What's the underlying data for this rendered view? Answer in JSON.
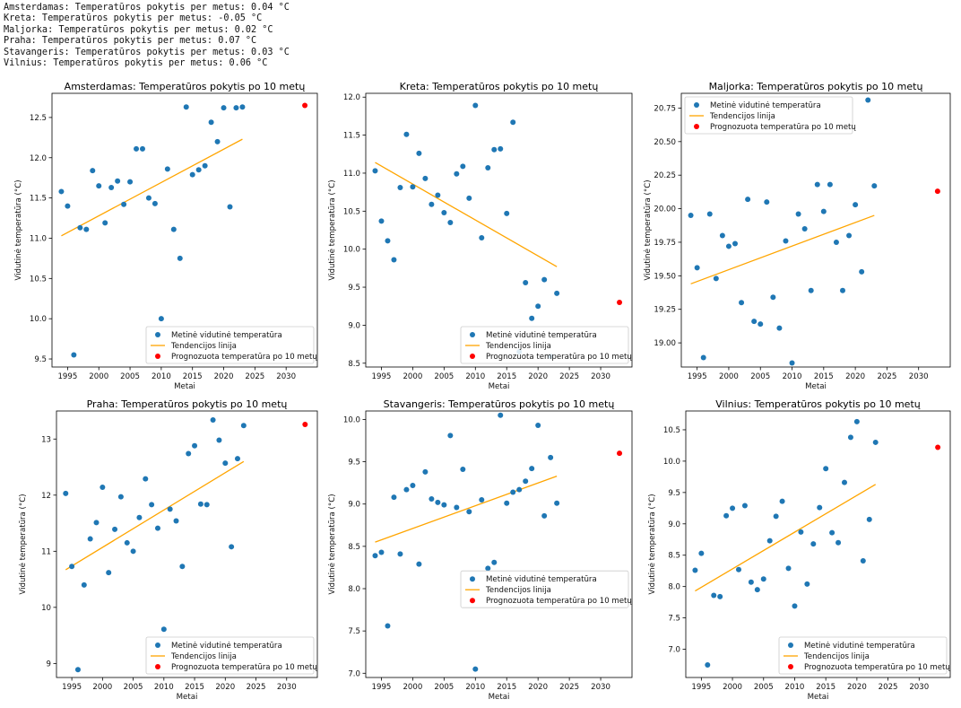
{
  "console": [
    "Amsterdamas: Temperatūros pokytis per metus: 0.04 °C",
    "Kreta: Temperatūros pokytis per metus: -0.05 °C",
    "Maljorka: Temperatūros pokytis per metus: 0.02 °C",
    "Praha: Temperatūros pokytis per metus: 0.07 °C",
    "Stavangeris: Temperatūros pokytis per metus: 0.03 °C",
    "Vilnius: Temperatūros pokytis per metus: 0.06 °C"
  ],
  "colors": {
    "points": "#1f77b4",
    "trend": "#ffa500",
    "forecast": "#ff0000"
  },
  "chart_data": [
    {
      "type": "scatter",
      "title": "Amsterdamas: Temperatūros pokytis po 10 metų",
      "xlabel": "Metai",
      "ylabel": "Vidutinė temperatūra (°C)",
      "xlim": [
        1992.5,
        2035
      ],
      "ylim": [
        9.4,
        12.8
      ],
      "xticks": [
        "1995",
        "2000",
        "2005",
        "2010",
        "2015",
        "2020",
        "2025",
        "2030"
      ],
      "yticks": [
        "9.5",
        "10.0",
        "10.5",
        "11.0",
        "11.5",
        "12.0",
        "12.5"
      ],
      "legend_position": "lower-right",
      "legend": [
        "Metinė vidutinė temperatūra",
        "Tendencijos linija",
        "Prognozuota temperatūra po 10 metų"
      ],
      "series": [
        {
          "name": "Metinė vidutinė temperatūra",
          "x": [
            1994,
            1995,
            1996,
            1997,
            1998,
            1999,
            2000,
            2001,
            2002,
            2003,
            2004,
            2005,
            2006,
            2007,
            2008,
            2009,
            2010,
            2011,
            2012,
            2013,
            2014,
            2015,
            2016,
            2017,
            2018,
            2019,
            2020,
            2021,
            2022,
            2023
          ],
          "y": [
            11.58,
            11.4,
            9.55,
            11.13,
            11.11,
            11.84,
            11.65,
            11.19,
            11.63,
            11.71,
            11.42,
            11.7,
            12.11,
            12.11,
            11.5,
            11.43,
            10.0,
            11.86,
            11.11,
            10.75,
            12.63,
            11.79,
            11.85,
            11.9,
            12.44,
            12.2,
            12.62,
            11.39,
            12.62,
            12.63
          ]
        },
        {
          "name": "Tendencijos linija",
          "x": [
            1994,
            2023
          ],
          "y": [
            11.03,
            12.23
          ]
        },
        {
          "name": "Prognozuota temperatūra po 10 metų",
          "x": [
            2033
          ],
          "y": [
            12.65
          ]
        }
      ]
    },
    {
      "type": "scatter",
      "title": "Kreta: Temperatūros pokytis po 10 metų",
      "xlabel": "Metai",
      "ylabel": "Vidutinė temperatūra (°C)",
      "xlim": [
        1992.5,
        2035
      ],
      "ylim": [
        8.45,
        12.05
      ],
      "xticks": [
        "1995",
        "2000",
        "2005",
        "2010",
        "2015",
        "2020",
        "2025",
        "2030"
      ],
      "yticks": [
        "8.5",
        "9.0",
        "9.5",
        "10.0",
        "10.5",
        "11.0",
        "11.5",
        "12.0"
      ],
      "legend_position": "lower-right",
      "legend": [
        "Metinė vidutinė temperatūra",
        "Tendencijos linija",
        "Prognozuota temperatūra po 10 metų"
      ],
      "series": [
        {
          "name": "Metinė vidutinė temperatūra",
          "x": [
            1994,
            1995,
            1996,
            1997,
            1998,
            1999,
            2000,
            2001,
            2002,
            2003,
            2004,
            2005,
            2006,
            2007,
            2008,
            2009,
            2010,
            2011,
            2012,
            2013,
            2014,
            2015,
            2016,
            2017,
            2018,
            2019,
            2020,
            2021,
            2022,
            2023
          ],
          "y": [
            11.03,
            10.37,
            10.11,
            9.86,
            10.81,
            11.51,
            10.82,
            11.26,
            10.93,
            10.59,
            10.71,
            10.48,
            10.35,
            10.99,
            11.09,
            10.67,
            11.89,
            10.15,
            11.07,
            11.31,
            11.32,
            10.47,
            11.67,
            8.65,
            9.56,
            9.09,
            9.25,
            9.6,
            8.59,
            9.42
          ]
        },
        {
          "name": "Tendencijos linija",
          "x": [
            1994,
            2023
          ],
          "y": [
            11.14,
            9.77
          ]
        },
        {
          "name": "Prognozuota temperatūra po 10 metų",
          "x": [
            2033
          ],
          "y": [
            9.3
          ]
        }
      ]
    },
    {
      "type": "scatter",
      "title": "Maljorka: Temperatūros pokytis po 10 metų",
      "xlabel": "Metai",
      "ylabel": "Vidutinė temperatūra (°C)",
      "xlim": [
        1992.5,
        2035
      ],
      "ylim": [
        18.82,
        20.86
      ],
      "xticks": [
        "1995",
        "2000",
        "2005",
        "2010",
        "2015",
        "2020",
        "2025",
        "2030"
      ],
      "yticks": [
        "19.00",
        "19.25",
        "19.50",
        "19.75",
        "20.00",
        "20.25",
        "20.50",
        "20.75"
      ],
      "legend_position": "upper-left",
      "legend": [
        "Metinė vidutinė temperatūra",
        "Tendencijos linija",
        "Prognozuota temperatūra po 10 metų"
      ],
      "series": [
        {
          "name": "Metinė vidutinė temperatūra",
          "x": [
            1994,
            1995,
            1996,
            1997,
            1998,
            1999,
            2000,
            2001,
            2002,
            2003,
            2004,
            2005,
            2006,
            2007,
            2008,
            2009,
            2010,
            2011,
            2012,
            2013,
            2014,
            2015,
            2016,
            2017,
            2018,
            2019,
            2020,
            2021,
            2022,
            2023
          ],
          "y": [
            19.95,
            19.56,
            18.89,
            19.96,
            19.48,
            19.8,
            19.72,
            19.74,
            19.3,
            20.07,
            19.16,
            19.14,
            20.05,
            19.34,
            19.11,
            19.76,
            18.85,
            19.96,
            19.85,
            19.39,
            20.18,
            19.98,
            20.18,
            19.75,
            19.39,
            19.8,
            20.03,
            19.53,
            20.81,
            20.17
          ]
        },
        {
          "name": "Tendencijos linija",
          "x": [
            1994,
            2023
          ],
          "y": [
            19.44,
            19.95
          ]
        },
        {
          "name": "Prognozuota temperatūra po 10 metų",
          "x": [
            2033
          ],
          "y": [
            20.13
          ]
        }
      ]
    },
    {
      "type": "scatter",
      "title": "Praha: Temperatūros pokytis po 10 metų",
      "xlabel": "Metai",
      "ylabel": "Vidutinė temperatūra (°C)",
      "xlim": [
        1992.5,
        2035
      ],
      "ylim": [
        8.75,
        13.5
      ],
      "xticks": [
        "1995",
        "2000",
        "2005",
        "2010",
        "2015",
        "2020",
        "2025",
        "2030"
      ],
      "yticks": [
        "9",
        "10",
        "11",
        "12",
        "13"
      ],
      "legend_position": "lower-right",
      "legend": [
        "Metinė vidutinė temperatūra",
        "Tendencijos linija",
        "Prognozuota temperatūra po 10 metų"
      ],
      "series": [
        {
          "name": "Metinė vidutinė temperatūra",
          "x": [
            1994,
            1995,
            1996,
            1997,
            1998,
            1999,
            2000,
            2001,
            2002,
            2003,
            2004,
            2005,
            2006,
            2007,
            2008,
            2009,
            2010,
            2011,
            2012,
            2013,
            2014,
            2015,
            2016,
            2017,
            2018,
            2019,
            2020,
            2021,
            2022,
            2023
          ],
          "y": [
            12.03,
            10.73,
            8.89,
            10.4,
            11.22,
            11.51,
            12.14,
            10.62,
            11.39,
            11.97,
            11.15,
            11.0,
            11.6,
            12.29,
            11.83,
            11.41,
            9.61,
            11.75,
            11.54,
            10.73,
            12.74,
            12.88,
            11.84,
            11.83,
            13.34,
            12.98,
            12.57,
            11.08,
            12.65,
            13.24
          ]
        },
        {
          "name": "Tendencijos linija",
          "x": [
            1994,
            2023
          ],
          "y": [
            10.67,
            12.6
          ]
        },
        {
          "name": "Prognozuota temperatūra po 10 metų",
          "x": [
            2033
          ],
          "y": [
            13.26
          ]
        }
      ]
    },
    {
      "type": "scatter",
      "title": "Stavangeris: Temperatūros pokytis po 10 metų",
      "xlabel": "Metai",
      "ylabel": "Vidutinė temperatūra (°C)",
      "xlim": [
        1992.5,
        2035
      ],
      "ylim": [
        6.95,
        10.1
      ],
      "xticks": [
        "1995",
        "2000",
        "2005",
        "2010",
        "2015",
        "2020",
        "2025",
        "2030"
      ],
      "yticks": [
        "7.0",
        "7.5",
        "8.0",
        "8.5",
        "9.0",
        "9.5",
        "10.0"
      ],
      "legend_position": "center-right",
      "legend": [
        "Metinė vidutinė temperatūra",
        "Tendencijos linija",
        "Prognozuota temperatūra po 10 metų"
      ],
      "series": [
        {
          "name": "Metinė vidutinė temperatūra",
          "x": [
            1994,
            1995,
            1996,
            1997,
            1998,
            1999,
            2000,
            2001,
            2002,
            2003,
            2004,
            2005,
            2006,
            2007,
            2008,
            2009,
            2010,
            2011,
            2012,
            2013,
            2014,
            2015,
            2016,
            2017,
            2018,
            2019,
            2020,
            2021,
            2022,
            2023
          ],
          "y": [
            8.39,
            8.43,
            7.56,
            9.08,
            8.41,
            9.17,
            9.22,
            8.29,
            9.38,
            9.06,
            9.02,
            8.99,
            9.81,
            8.96,
            9.41,
            8.91,
            7.05,
            9.05,
            8.24,
            8.31,
            10.05,
            9.01,
            9.14,
            9.17,
            9.27,
            9.42,
            9.93,
            8.86,
            9.55,
            9.01
          ]
        },
        {
          "name": "Tendencijos linija",
          "x": [
            1994,
            2023
          ],
          "y": [
            8.55,
            9.33
          ]
        },
        {
          "name": "Prognozuota temperatūra po 10 metų",
          "x": [
            2033
          ],
          "y": [
            9.6
          ]
        }
      ]
    },
    {
      "type": "scatter",
      "title": "Vilnius: Temperatūros pokytis po 10 metų",
      "xlabel": "Metai",
      "ylabel": "Vidutinė temperatūra (°C)",
      "xlim": [
        1992.5,
        2035
      ],
      "ylim": [
        6.55,
        10.8
      ],
      "xticks": [
        "1995",
        "2000",
        "2005",
        "2010",
        "2015",
        "2020",
        "2025",
        "2030"
      ],
      "yticks": [
        "7.0",
        "7.5",
        "8.0",
        "8.5",
        "9.0",
        "9.5",
        "10.0",
        "10.5"
      ],
      "legend_position": "lower-right",
      "legend": [
        "Metinė vidutinė temperatūra",
        "Tendencijos linija",
        "Prognozuota temperatūra po 10 metų"
      ],
      "series": [
        {
          "name": "Metinė vidutinė temperatūra",
          "x": [
            1994,
            1995,
            1996,
            1997,
            1998,
            1999,
            2000,
            2001,
            2002,
            2003,
            2004,
            2005,
            2006,
            2007,
            2008,
            2009,
            2010,
            2011,
            2012,
            2013,
            2014,
            2015,
            2016,
            2017,
            2018,
            2019,
            2020,
            2021,
            2022,
            2023
          ],
          "y": [
            8.26,
            8.53,
            6.75,
            7.86,
            7.84,
            9.13,
            9.25,
            8.27,
            9.29,
            8.07,
            7.95,
            8.12,
            8.73,
            9.12,
            9.36,
            8.29,
            7.69,
            8.87,
            8.04,
            8.68,
            9.26,
            9.88,
            8.86,
            8.7,
            9.66,
            10.38,
            10.63,
            8.41,
            9.07,
            10.3
          ]
        },
        {
          "name": "Tendencijos linija",
          "x": [
            1994,
            2023
          ],
          "y": [
            7.93,
            9.63
          ]
        },
        {
          "name": "Prognozuota temperatūra po 10 metų",
          "x": [
            2033
          ],
          "y": [
            10.22
          ]
        }
      ]
    }
  ]
}
